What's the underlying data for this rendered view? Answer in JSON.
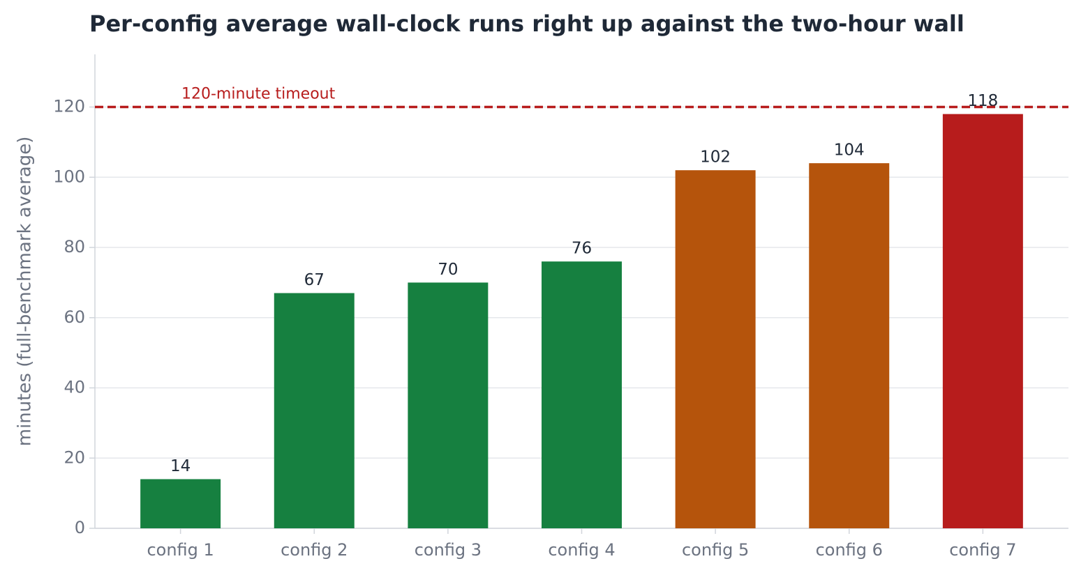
{
  "chart_data": {
    "type": "bar",
    "title": "Per-config average wall-clock runs right up against the two-hour wall",
    "ylabel": "minutes (full-benchmark average)",
    "categories": [
      "config 1",
      "config 2",
      "config 3",
      "config 4",
      "config 5",
      "config 6",
      "config 7"
    ],
    "values": [
      14,
      67,
      70,
      76,
      102,
      104,
      118
    ],
    "colors": [
      "#168040",
      "#168040",
      "#168040",
      "#168040",
      "#b5540c",
      "#b5540c",
      "#b71c1c"
    ],
    "ylim": [
      0,
      135
    ],
    "yticks": [
      0,
      20,
      40,
      60,
      80,
      100,
      120
    ],
    "grid": true,
    "reference_line": {
      "value": 120,
      "label": "120-minute timeout",
      "color": "#b71c1c"
    }
  }
}
